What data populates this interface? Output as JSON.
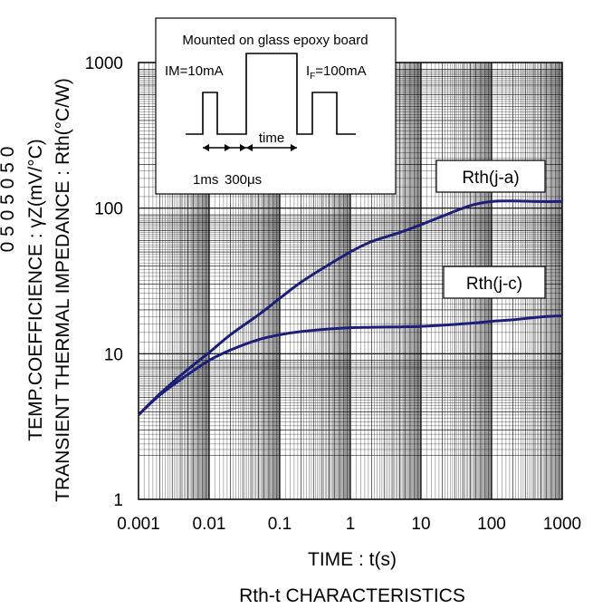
{
  "chart_data": {
    "type": "line",
    "xscale": "log",
    "yscale": "log",
    "xlim": [
      0.001,
      1000
    ],
    "ylim": [
      1,
      1000
    ],
    "x_ticks": [
      "0.001",
      "0.01",
      "0.1",
      "1",
      "10",
      "100",
      "1000"
    ],
    "y_ticks": [
      "1",
      "10",
      "100",
      "1000"
    ],
    "xlabel": "TIME : t(s)",
    "caption": "Rth-t CHARACTERISTICS",
    "ylabel_lines": [
      "TEMP.COEFFICIENCE : γZ(mV/°C)",
      "TRANSIENT THERMAL IMPEDANCE : Rth(°C/W)"
    ],
    "ylabel_partial": "0    5    0    5    0    5    0",
    "grid": true,
    "line_color": "#1c1f7a",
    "series": [
      {
        "name": "Rth(j-a)",
        "x": [
          0.001,
          0.002,
          0.005,
          0.01,
          0.02,
          0.05,
          0.1,
          0.2,
          0.5,
          1,
          2,
          5,
          10,
          20,
          50,
          100,
          200,
          500,
          1000
        ],
        "values": [
          3.8,
          5.3,
          7.8,
          10.2,
          13.5,
          18.5,
          24,
          31,
          41,
          50,
          59,
          68,
          77,
          88,
          104,
          111,
          112,
          111,
          111
        ]
      },
      {
        "name": "Rth(j-c)",
        "x": [
          0.001,
          0.002,
          0.005,
          0.01,
          0.02,
          0.05,
          0.1,
          0.2,
          0.5,
          1,
          2,
          5,
          10,
          20,
          50,
          100,
          200,
          500,
          1000
        ],
        "values": [
          3.8,
          5.2,
          7.2,
          9.0,
          10.6,
          12.5,
          13.5,
          14.2,
          14.8,
          15.1,
          15.2,
          15.3,
          15.4,
          15.7,
          16.2,
          16.7,
          17.1,
          17.9,
          18.2
        ]
      }
    ],
    "inset": {
      "title": "Mounted on glass epoxy board",
      "im_label": "IM=10mA",
      "if_label_prefix": "I",
      "if_label_sub": "F",
      "if_label_suffix": "=100mA",
      "time_label": "time",
      "ms_label": "1ms",
      "us_label": "300μs"
    }
  }
}
